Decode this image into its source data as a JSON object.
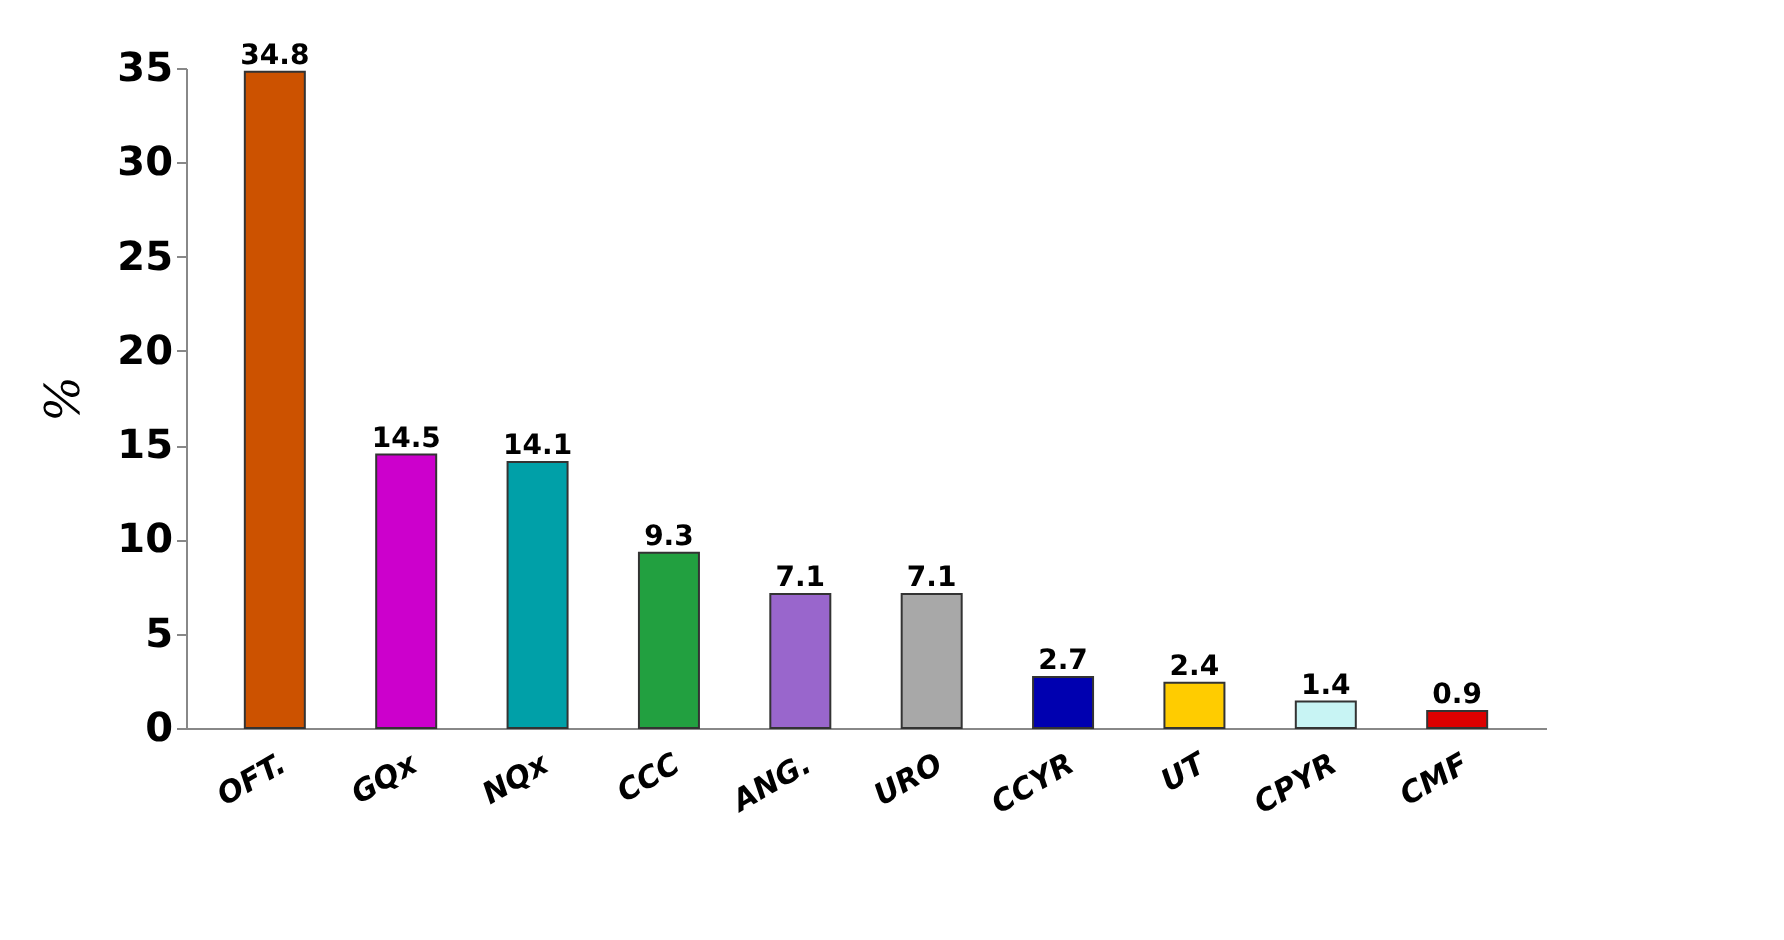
{
  "chart_data": {
    "type": "bar",
    "ylabel": "%",
    "categories": [
      "OFT.",
      "GQx",
      "NQx",
      "CCC",
      "ANG.",
      "URO",
      "CCYR",
      "UT",
      "CPYR",
      "CMF"
    ],
    "values": [
      34.8,
      14.5,
      14.1,
      9.3,
      7.1,
      7.1,
      2.7,
      2.4,
      1.4,
      0.9
    ],
    "colors": [
      "#cc5200",
      "#cc00cc",
      "#00a0a8",
      "#22a040",
      "#9966cc",
      "#a8a8a8",
      "#0000b0",
      "#ffcc00",
      "#c8f4f4",
      "#dd0000"
    ],
    "ylim": [
      0,
      35
    ],
    "yticks": [
      0,
      5,
      10,
      15,
      20,
      25,
      30,
      35
    ],
    "data_labels": true,
    "grid": false
  }
}
